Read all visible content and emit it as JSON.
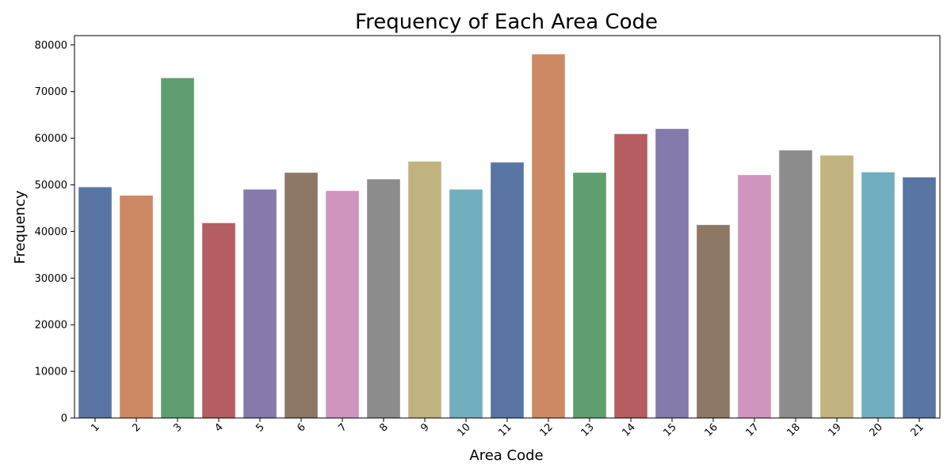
{
  "chart_data": {
    "type": "bar",
    "title": "Frequency of Each Area Code",
    "xlabel": "Area Code",
    "ylabel": "Frequency",
    "categories": [
      "1",
      "2",
      "3",
      "4",
      "5",
      "6",
      "7",
      "8",
      "9",
      "10",
      "11",
      "12",
      "13",
      "14",
      "15",
      "16",
      "17",
      "18",
      "19",
      "20",
      "21"
    ],
    "values": [
      49500,
      47700,
      72900,
      41800,
      49000,
      52600,
      48700,
      51200,
      55000,
      49000,
      54800,
      78000,
      52600,
      60900,
      62000,
      41400,
      52100,
      57400,
      56300,
      52700,
      51600
    ],
    "ylim": [
      0,
      82000
    ],
    "yticks": [
      0,
      10000,
      20000,
      30000,
      40000,
      50000,
      60000,
      70000,
      80000
    ],
    "colors": [
      "#5875a4",
      "#cc8963",
      "#5f9e6e",
      "#b55d60",
      "#857aab",
      "#8d7866",
      "#d095bf",
      "#8c8c8c",
      "#c1b37f",
      "#71aec0"
    ],
    "grid": false,
    "legend": "none",
    "xtick_rotation": 45
  }
}
